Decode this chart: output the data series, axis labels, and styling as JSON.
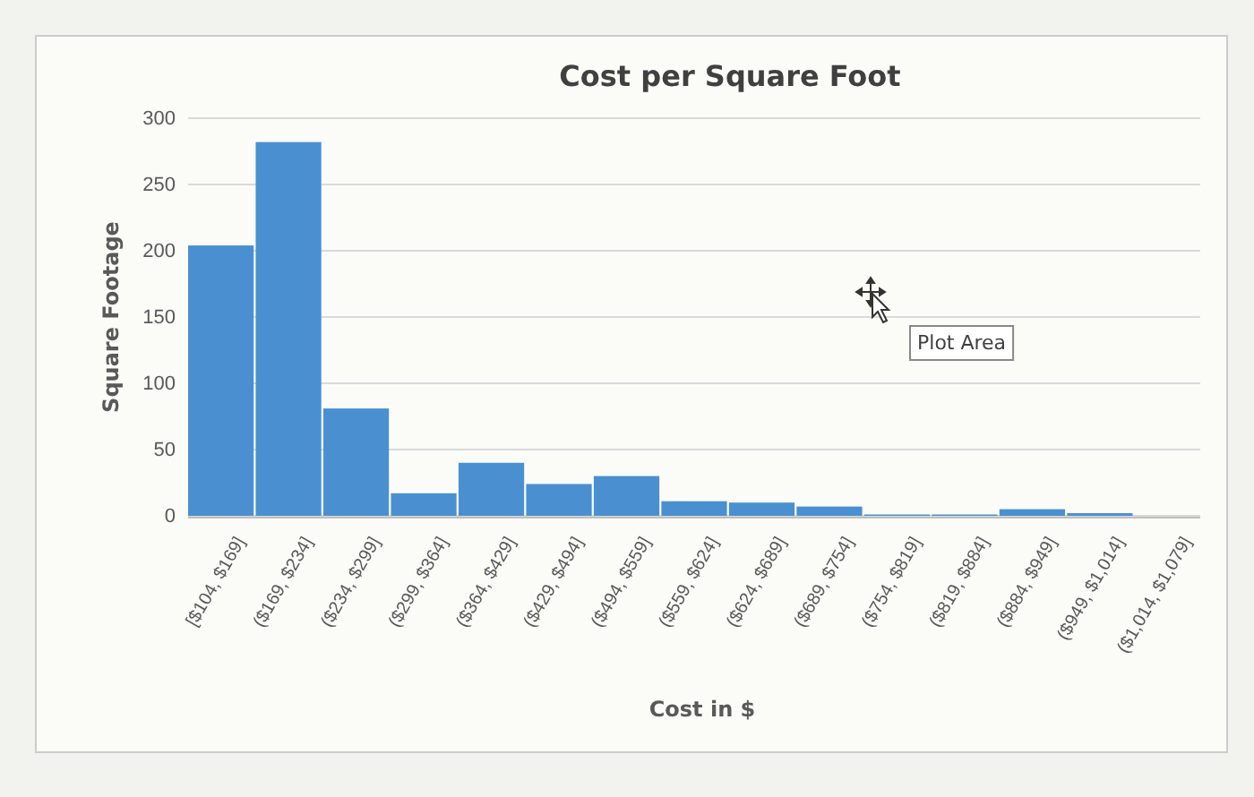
{
  "chart_data": {
    "type": "bar",
    "title": "Cost per Square Foot",
    "xlabel": "Cost in $",
    "ylabel": "Square Footage",
    "categories": [
      "[$104, $169]",
      "($169, $234]",
      "($234, $299]",
      "($299, $364]",
      "($364, $429]",
      "($429, $494]",
      "($494, $559]",
      "($559, $624]",
      "($624, $689]",
      "($689, $754]",
      "($754, $819]",
      "($819, $884]",
      "($884, $949]",
      "($949, $1,014]",
      "($1,014, $1,079]"
    ],
    "values": [
      204,
      282,
      81,
      17,
      40,
      24,
      30,
      11,
      10,
      7,
      1,
      1,
      5,
      2,
      null
    ],
    "color": "#4a90d0",
    "ylim": [
      0,
      300
    ],
    "yticks": [
      0,
      50,
      100,
      150,
      200,
      250,
      300
    ],
    "grid": "y",
    "annotations": [
      "Plot Area"
    ]
  }
}
